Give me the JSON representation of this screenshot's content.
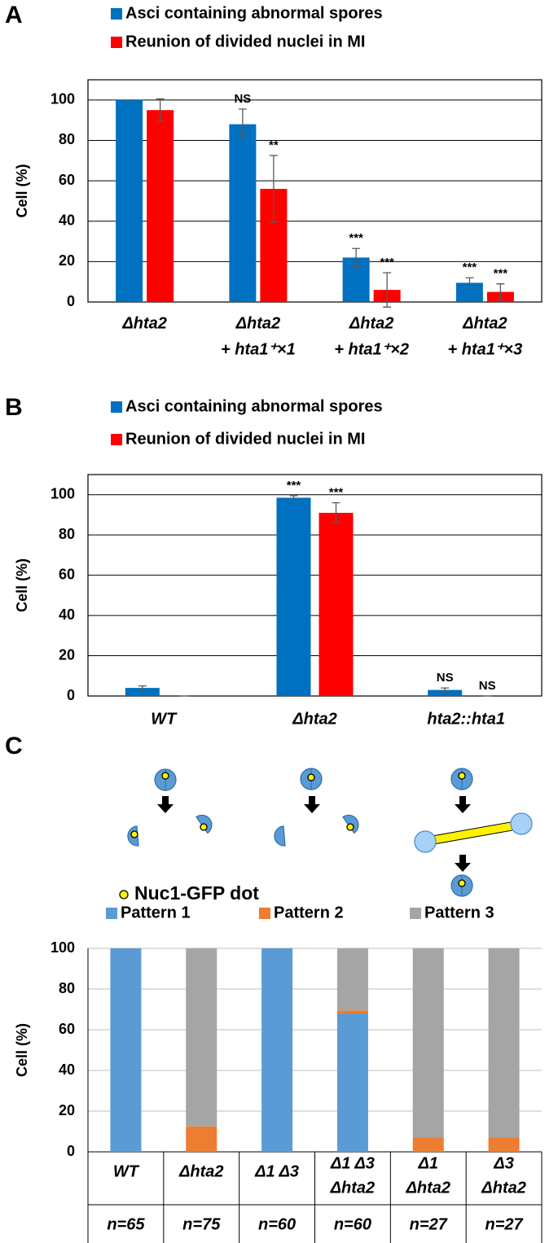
{
  "chart_data": [
    {
      "type": "bar",
      "panel_label": "A",
      "y_label": "Cell (%)",
      "categories": [
        [
          "Δhta2"
        ],
        [
          "Δhta2",
          "+ hta1⁺×1"
        ],
        [
          "Δhta2",
          "+ hta1⁺×2"
        ],
        [
          "Δhta2",
          "+ hta1⁺×3"
        ]
      ],
      "series": [
        {
          "name": "Asci containing abnormal spores",
          "color": "#0070c0",
          "values": [
            100,
            88,
            22,
            9.5
          ],
          "errors": [
            0,
            7.5,
            4.5,
            2.5
          ],
          "annotations": [
            null,
            "NS",
            "***",
            "***"
          ]
        },
        {
          "name": "Reunion of divided nuclei in MI",
          "color": "#ff0000",
          "values": [
            95,
            56,
            6,
            5
          ],
          "errors": [
            5.5,
            16.5,
            8.5,
            4
          ],
          "annotations": [
            null,
            "**",
            "***",
            "***"
          ]
        }
      ],
      "ylim": [
        0,
        110
      ],
      "yticks": [
        0,
        20,
        40,
        60,
        80,
        100
      ],
      "grid": true,
      "legend": "top-left"
    },
    {
      "type": "bar",
      "panel_label": "B",
      "y_label": "Cell (%)",
      "categories": [
        [
          "WT"
        ],
        [
          "Δhta2"
        ],
        [
          "hta2::hta1"
        ]
      ],
      "series": [
        {
          "name": "Asci containing abnormal spores",
          "color": "#0070c0",
          "values": [
            4,
            98.5,
            3
          ],
          "errors": [
            1,
            1,
            1
          ],
          "annotations": [
            null,
            "***",
            "NS"
          ]
        },
        {
          "name": "Reunion of divided nuclei in MI",
          "color": "#ff0000",
          "values": [
            0,
            91,
            0
          ],
          "errors": [
            0,
            5,
            0
          ],
          "annotations": [
            null,
            "***",
            "NS"
          ]
        }
      ],
      "ylim": [
        0,
        110
      ],
      "yticks": [
        0,
        20,
        40,
        60,
        80,
        100
      ],
      "grid": true,
      "legend": "top-left"
    },
    {
      "type": "stacked_bar",
      "panel_label": "C",
      "y_label": "Cell (%)",
      "annotation": "Nuc1-GFP dot",
      "categories": [
        [
          "WT"
        ],
        [
          "Δhta2"
        ],
        [
          "Δ1 Δ3"
        ],
        [
          "Δ1 Δ3",
          "Δhta2"
        ],
        [
          "Δ1",
          "Δhta2"
        ],
        [
          "Δ3",
          "Δhta2"
        ]
      ],
      "n_labels": [
        "n=65",
        "n=75",
        "n=60",
        "n=60",
        "n=27",
        "n=27"
      ],
      "series": [
        {
          "name": "Pattern 1",
          "color": "#5b9bd5",
          "values": [
            100,
            0,
            100,
            68,
            0,
            0
          ]
        },
        {
          "name": "Pattern 2",
          "color": "#ed7d31",
          "values": [
            0,
            12.5,
            0,
            1.5,
            7,
            7
          ]
        },
        {
          "name": "Pattern 3",
          "color": "#a5a5a5",
          "values": [
            0,
            87.5,
            0,
            30.5,
            93,
            93
          ]
        }
      ],
      "ylim": [
        0,
        100
      ],
      "yticks": [
        0,
        20,
        40,
        60,
        80,
        100
      ],
      "grid": true,
      "legend": "top"
    }
  ]
}
